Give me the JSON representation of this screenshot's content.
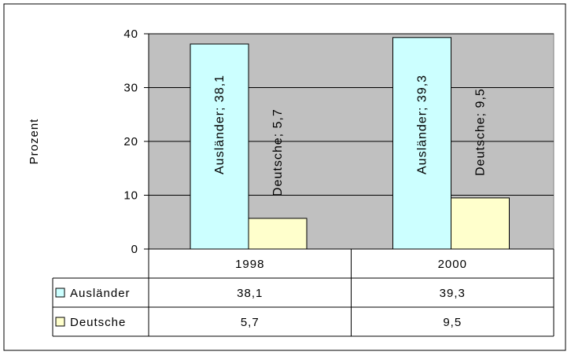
{
  "chart_data": {
    "type": "bar",
    "title": "",
    "xlabel": "",
    "ylabel": "Prozent",
    "ylim": [
      0,
      40
    ],
    "yticks": [
      "0",
      "10",
      "20",
      "30",
      "40"
    ],
    "categories": [
      "1998",
      "2000"
    ],
    "grid": true,
    "legend": "data-table",
    "series": [
      {
        "name": "Ausländer",
        "color": "#ccffff",
        "values": [
          38.1,
          39.3
        ],
        "value_labels": [
          "38,1",
          "39,3"
        ],
        "bar_labels": [
          "Ausländer; 38,1",
          "Ausländer; 39,3"
        ]
      },
      {
        "name": "Deutsche",
        "color": "#ffffcc",
        "values": [
          5.7,
          9.5
        ],
        "value_labels": [
          "5,7",
          "9,5"
        ],
        "bar_labels": [
          "Deutsche; 5,7",
          "Deutsche; 9,5"
        ]
      }
    ],
    "plot_background": "#c0c0c0"
  }
}
